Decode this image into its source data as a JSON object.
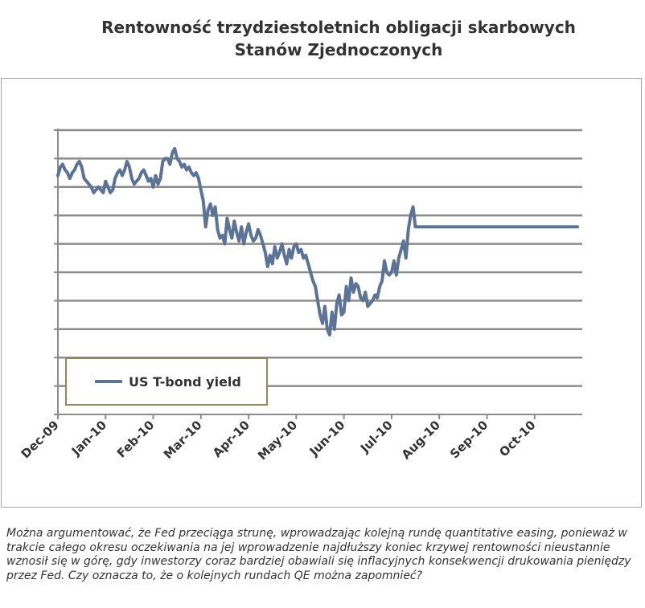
{
  "title_line1": "Rentowność trzydziestoletnich obligacji skarbowych",
  "title_line2": "Stanów Zjednoczonych",
  "caption": "Można argumentować, że Fed przeciąga strunę, wprowadzając kolejną rundę quantitative easing, ponieważ w trakcie całego okresu oczekiwania na jej wprowadzenie najdłuższy koniec krzywej rentowności nieustannie wznosił się w górę, gdy inwestorzy coraz bardziej obawiali się inflacyjnych konsekwencji drukowania pieniędzy przez Fed. Czy oznacza to, że o kolejnych rundach QE można zapomnieć?",
  "colors": {
    "line": "#5a7396",
    "grid": "#8c8c8c",
    "legend_border": "#8b8b55",
    "frame": "#a6a6a6",
    "text": "#333333"
  },
  "chart_data": {
    "type": "line",
    "title": "Rentowność trzydziestoletnich obligacji skarbowych Stanów Zjednoczonych",
    "xlabel": "",
    "ylabel": "",
    "x_tick_labels": [
      "Dec-09",
      "Jan-10",
      "Feb-10",
      "Mar-10",
      "Apr-10",
      "May-10",
      "Jun-10",
      "Jul-10",
      "Aug-10",
      "Sep-10",
      "Oct-10"
    ],
    "y_tick_labels_shown": false,
    "grid": "horizontal",
    "gridline_count": 10,
    "ylim": [
      0,
      10
    ],
    "legend": {
      "placement": "bottom-left",
      "entries": [
        "US T-bond yield"
      ]
    },
    "series": [
      {
        "name": "US T-bond yield",
        "x": [
          0.0,
          0.05,
          0.1,
          0.15,
          0.2,
          0.25,
          0.3,
          0.35,
          0.4,
          0.45,
          0.5,
          0.55,
          0.6,
          0.65,
          0.7,
          0.75,
          0.8,
          0.85,
          0.9,
          0.95,
          1.0,
          1.05,
          1.1,
          1.15,
          1.2,
          1.25,
          1.3,
          1.35,
          1.4,
          1.45,
          1.5,
          1.55,
          1.6,
          1.65,
          1.7,
          1.75,
          1.8,
          1.85,
          1.9,
          1.95,
          2.0,
          2.05,
          2.1,
          2.15,
          2.2,
          2.25,
          2.3,
          2.35,
          2.4,
          2.45,
          2.5,
          2.55,
          2.6,
          2.65,
          2.7,
          2.75,
          2.8,
          2.85,
          2.9,
          2.95,
          3.0,
          3.05,
          3.1,
          3.15,
          3.2,
          3.25,
          3.3,
          3.35,
          3.4,
          3.45,
          3.5,
          3.55,
          3.6,
          3.65,
          3.7,
          3.75,
          3.8,
          3.85,
          3.9,
          3.95,
          4.0,
          4.05,
          4.1,
          4.15,
          4.2,
          4.25,
          4.3,
          4.35,
          4.4,
          4.45,
          4.5,
          4.55,
          4.6,
          4.65,
          4.7,
          4.75,
          4.8,
          4.85,
          4.9,
          4.95,
          5.0,
          5.05,
          5.1,
          5.15,
          5.2,
          5.25,
          5.3,
          5.35,
          5.4,
          5.45,
          5.5,
          5.55,
          5.6,
          5.65,
          5.7,
          5.75,
          5.8,
          5.85,
          5.9,
          5.95,
          6.0,
          6.05,
          6.1,
          6.15,
          6.2,
          6.25,
          6.3,
          6.35,
          6.4,
          6.45,
          6.5,
          6.55,
          6.6,
          6.65,
          6.7,
          6.75,
          6.8,
          6.85,
          6.9,
          6.95,
          7.0,
          7.05,
          7.1,
          7.15,
          7.2,
          7.25,
          7.3,
          7.35,
          7.4,
          7.45,
          7.5,
          7.55,
          7.6,
          7.65,
          7.7,
          7.75,
          7.8,
          7.85,
          7.9,
          7.95,
          8.0,
          8.05,
          8.1,
          8.15,
          8.2,
          8.25,
          8.3,
          8.35,
          8.4,
          8.45,
          8.5,
          8.55,
          8.6,
          8.65,
          8.7,
          8.75,
          8.8,
          8.85,
          8.9,
          8.95,
          9.0,
          9.05,
          9.1,
          9.15,
          9.2,
          9.25,
          9.3,
          9.35,
          9.4,
          9.45,
          9.5,
          9.55,
          9.6,
          9.65,
          9.7,
          9.75,
          9.8,
          9.85,
          9.9,
          9.95,
          10.0,
          10.05,
          10.1,
          10.15,
          10.2,
          10.25,
          10.3,
          10.35,
          10.4,
          10.45,
          10.5,
          10.55,
          10.6,
          10.65,
          10.7,
          10.75,
          10.8,
          10.85,
          10.9,
          10.95
        ],
        "values": [
          8.4,
          8.7,
          8.8,
          8.6,
          8.5,
          8.3,
          8.5,
          8.6,
          8.8,
          8.9,
          8.7,
          8.3,
          8.2,
          8.1,
          8.0,
          7.8,
          7.9,
          8.0,
          7.9,
          7.8,
          8.2,
          8.0,
          7.8,
          7.9,
          8.3,
          8.5,
          8.6,
          8.4,
          8.6,
          8.9,
          8.7,
          8.3,
          8.1,
          8.2,
          8.3,
          8.5,
          8.6,
          8.4,
          8.2,
          8.3,
          8.0,
          8.4,
          8.1,
          8.3,
          8.9,
          9.0,
          9.0,
          8.8,
          9.2,
          9.35,
          9.0,
          8.9,
          8.7,
          8.8,
          8.6,
          8.7,
          8.5,
          8.4,
          8.5,
          8.3,
          7.9,
          7.5,
          6.6,
          7.2,
          7.4,
          7.0,
          7.3,
          6.5,
          6.2,
          6.3,
          6.0,
          6.9,
          6.5,
          6.2,
          6.8,
          6.4,
          6.1,
          6.6,
          6.0,
          6.4,
          6.7,
          6.3,
          6.1,
          6.2,
          6.5,
          6.3,
          6.0,
          5.7,
          5.2,
          5.6,
          5.3,
          5.9,
          5.5,
          5.7,
          6.0,
          5.6,
          5.3,
          5.8,
          5.5,
          5.9,
          6.0,
          5.7,
          5.8,
          5.5,
          5.6,
          5.3,
          5.0,
          4.7,
          4.5,
          4.0,
          3.5,
          3.2,
          3.8,
          3.0,
          2.8,
          3.6,
          3.0,
          3.9,
          4.2,
          3.5,
          3.6,
          4.5,
          4.0,
          4.8,
          4.3,
          4.6,
          4.5,
          4.1,
          4.0,
          4.3,
          3.8,
          3.9,
          4.0,
          4.2,
          4.1,
          4.5,
          4.7,
          5.4,
          5.0,
          4.9,
          5.0,
          5.4,
          4.9,
          5.5,
          5.8,
          6.1,
          5.5,
          6.5,
          7.0,
          7.3,
          6.6,
          6.6,
          6.6,
          6.6,
          6.6,
          6.6,
          6.6,
          6.6,
          6.6,
          6.6,
          6.6,
          6.6,
          6.6,
          6.6,
          6.6,
          6.6,
          6.6,
          6.6,
          6.6,
          6.6,
          6.6,
          6.6,
          6.6,
          6.6,
          6.6,
          6.6,
          6.6,
          6.6,
          6.6,
          6.6,
          6.6,
          6.6,
          6.6,
          6.6,
          6.6,
          6.6,
          6.6,
          6.6,
          6.6,
          6.6,
          6.6,
          6.6,
          6.6,
          6.6,
          6.6,
          6.6,
          6.6,
          6.6,
          6.6,
          6.6,
          6.6,
          6.6,
          6.6,
          6.6,
          6.6,
          6.6,
          6.6,
          6.6,
          6.6,
          6.6,
          6.6,
          6.6,
          6.6,
          6.6,
          6.6,
          6.6,
          6.6,
          6.6,
          6.6,
          6.6
        ]
      }
    ],
    "xlim": [
      0,
      11
    ]
  }
}
